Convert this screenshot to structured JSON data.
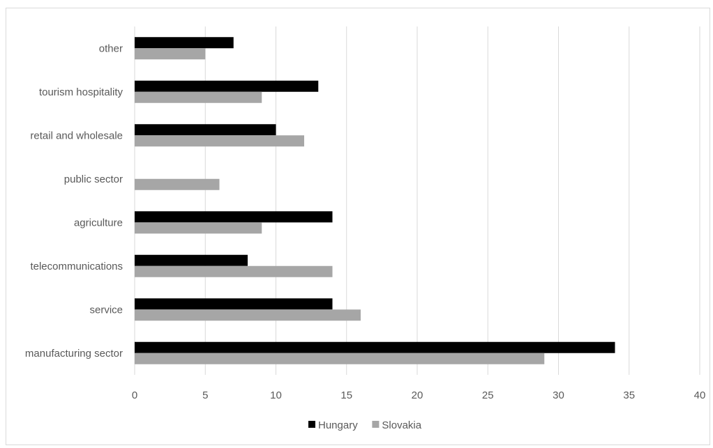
{
  "chart_data": {
    "type": "bar",
    "orientation": "horizontal",
    "categories": [
      "manufacturing sector",
      "service",
      "telecommunications",
      "agriculture",
      "public sector",
      "retail and wholesale",
      "tourism hospitality",
      "other"
    ],
    "series": [
      {
        "name": "Hungary",
        "color": "#000000",
        "values": [
          34,
          14,
          8,
          14,
          0,
          10,
          13,
          7
        ]
      },
      {
        "name": "Slovakia",
        "color": "#a6a6a6",
        "values": [
          29,
          16,
          14,
          9,
          6,
          12,
          9,
          5
        ]
      }
    ],
    "xlim": [
      0,
      40
    ],
    "xticks": [
      0,
      5,
      10,
      15,
      20,
      25,
      30,
      35,
      40
    ],
    "grid": true,
    "legend_position": "bottom"
  }
}
